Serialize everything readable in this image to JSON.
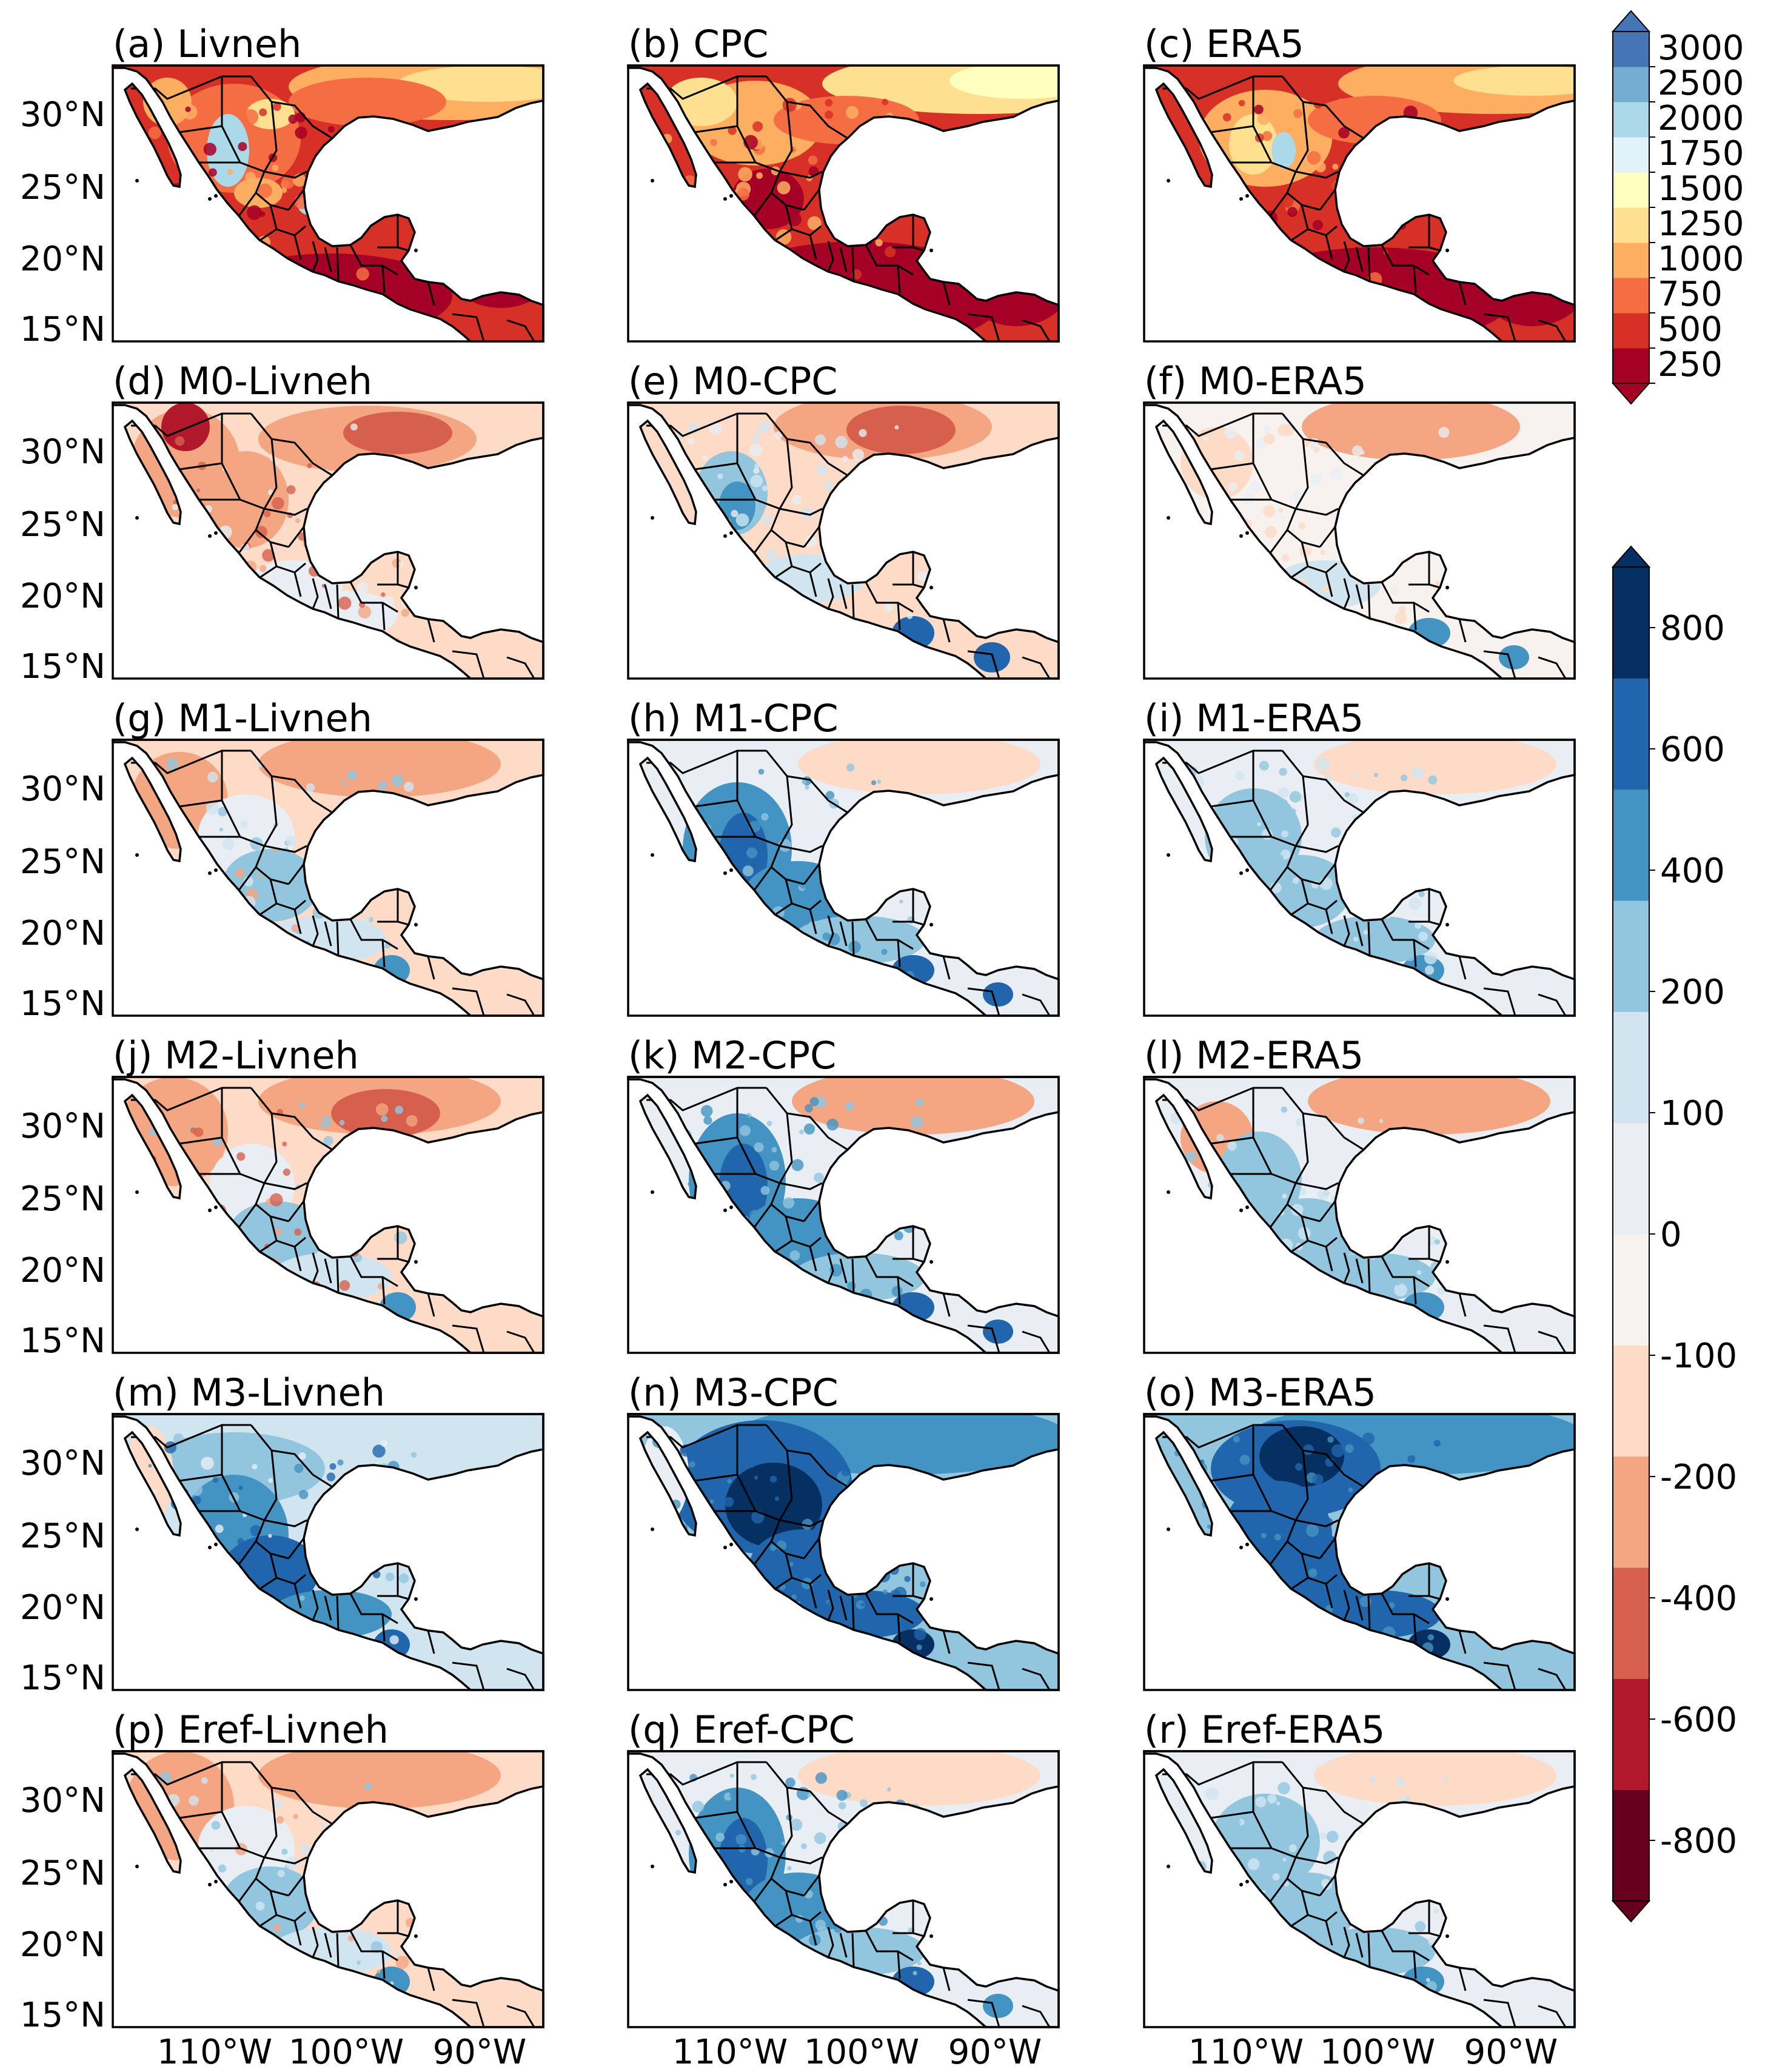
{
  "figure": {
    "lat_ticks": [
      "30°N",
      "25°N",
      "20°N",
      "15°N"
    ],
    "lon_ticks": [
      "110°W",
      "100°W",
      "90°W"
    ]
  },
  "panels": [
    {
      "label": "(a) Livneh",
      "kind": "abs",
      "variant": "livneh"
    },
    {
      "label": "(b) CPC",
      "kind": "abs",
      "variant": "cpc"
    },
    {
      "label": "(c) ERA5",
      "kind": "abs",
      "variant": "era5"
    },
    {
      "label": "(d) M0-Livneh",
      "kind": "diff",
      "variant": "m0l"
    },
    {
      "label": "(e) M0-CPC",
      "kind": "diff",
      "variant": "m0c"
    },
    {
      "label": "(f) M0-ERA5",
      "kind": "diff",
      "variant": "m0e"
    },
    {
      "label": "(g) M1-Livneh",
      "kind": "diff",
      "variant": "m1l"
    },
    {
      "label": "(h) M1-CPC",
      "kind": "diff",
      "variant": "m1c"
    },
    {
      "label": "(i) M1-ERA5",
      "kind": "diff",
      "variant": "m1e"
    },
    {
      "label": "(j) M2-Livneh",
      "kind": "diff",
      "variant": "m2l"
    },
    {
      "label": "(k) M2-CPC",
      "kind": "diff",
      "variant": "m2c"
    },
    {
      "label": "(l) M2-ERA5",
      "kind": "diff",
      "variant": "m2e"
    },
    {
      "label": "(m) M3-Livneh",
      "kind": "diff",
      "variant": "m3l"
    },
    {
      "label": "(n) M3-CPC",
      "kind": "diff",
      "variant": "m3c"
    },
    {
      "label": "(o) M3-ERA5",
      "kind": "diff",
      "variant": "m3e"
    },
    {
      "label": "(p) Eref-Livneh",
      "kind": "diff",
      "variant": "erl"
    },
    {
      "label": "(q) Eref-CPC",
      "kind": "diff",
      "variant": "erc"
    },
    {
      "label": "(r) Eref-ERA5",
      "kind": "diff",
      "variant": "ere"
    }
  ],
  "colorbars": {
    "absolute": {
      "ticks": [
        "3000",
        "2500",
        "2000",
        "1750",
        "1500",
        "1250",
        "1000",
        "750",
        "500",
        "250"
      ],
      "colors": [
        "#a50026",
        "#d73027",
        "#f46d43",
        "#fdae61",
        "#fee090",
        "#ffffbf",
        "#e0f3f8",
        "#abd9e9",
        "#74add1",
        "#4575b4"
      ],
      "extend": "both"
    },
    "difference": {
      "ticks": [
        "800",
        "600",
        "400",
        "200",
        "100",
        "0",
        "-100",
        "-200",
        "-400",
        "-600",
        "-800"
      ],
      "colors": [
        "#67001f",
        "#b2182b",
        "#d6604d",
        "#f4a582",
        "#fddbc7",
        "#f7f2ee",
        "#e8eef4",
        "#d1e5f0",
        "#92c5de",
        "#4393c3",
        "#2166ac",
        "#053061"
      ],
      "extend": "both"
    }
  },
  "map_colors": {
    "ocean": "#ffffff",
    "border": "#000000"
  }
}
